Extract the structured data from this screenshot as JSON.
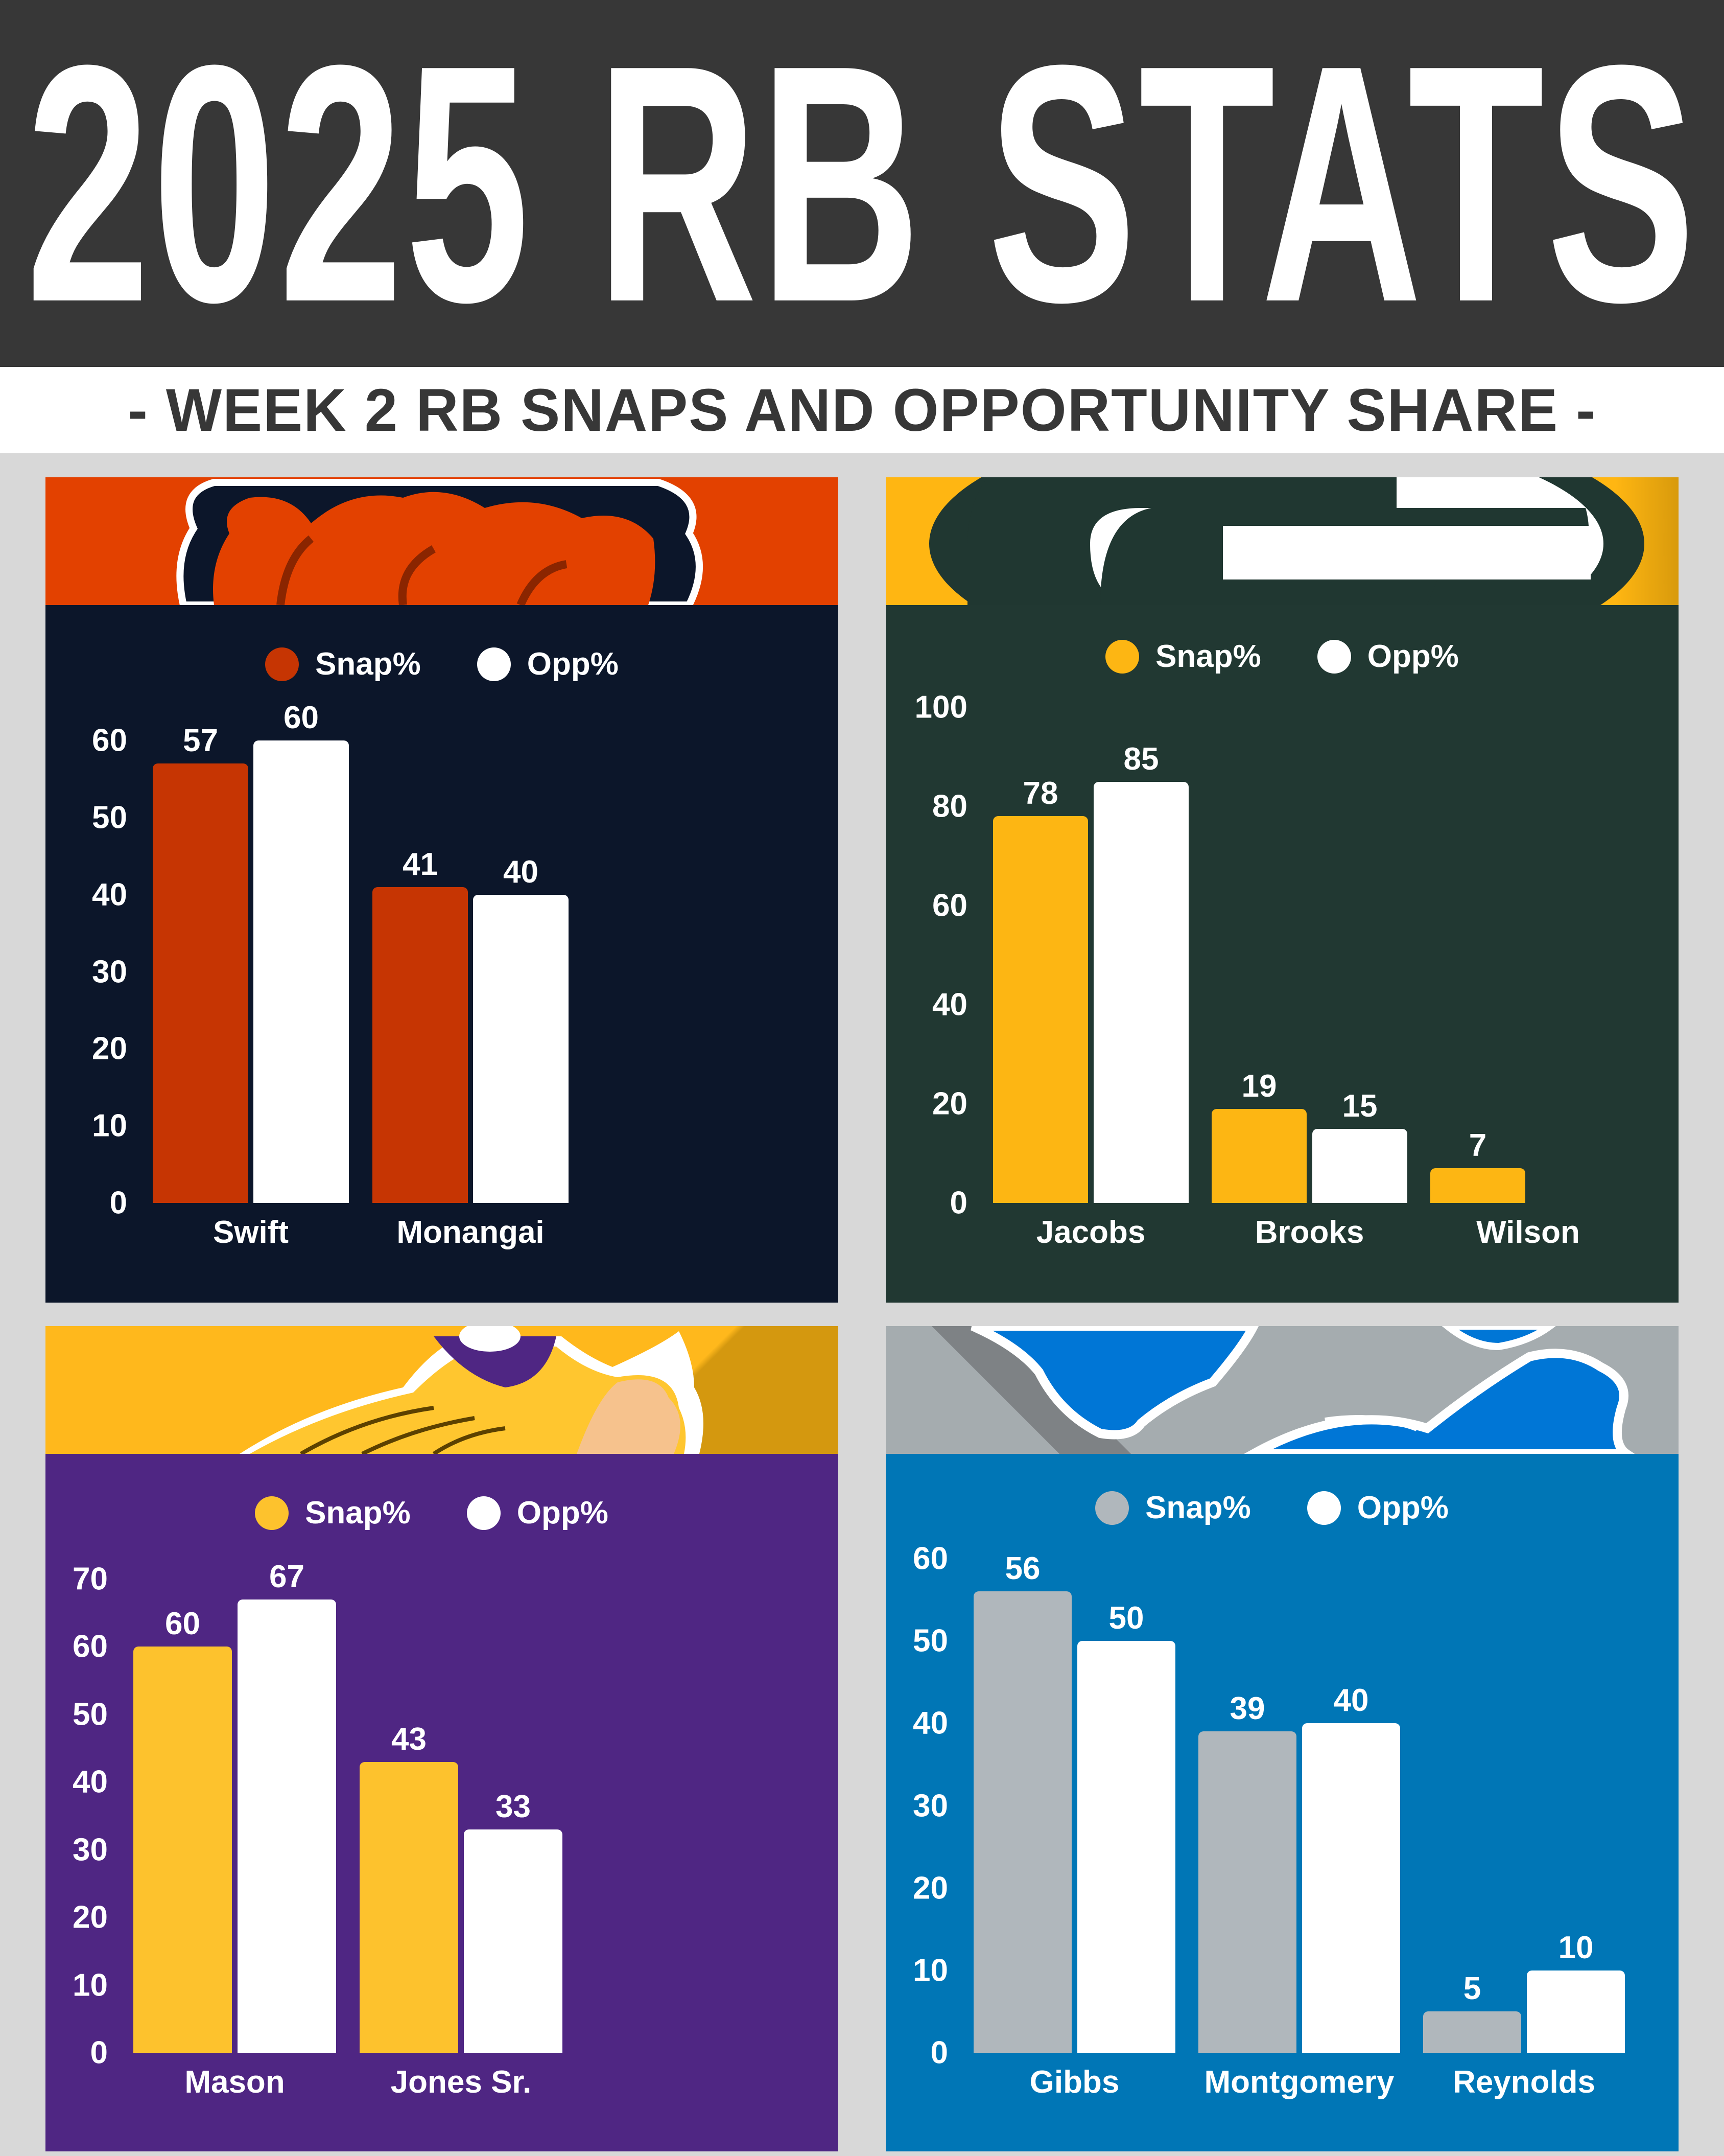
{
  "header": {
    "title": "2025 RB STATS",
    "subtitle": "- WEEK 2 RB SNAPS AND OPPORTUNITY SHARE -"
  },
  "legend": {
    "snap_label": "Snap%",
    "opp_label": "Opp%"
  },
  "colors": {
    "page_bg": "#d8d8d8",
    "title_bg": "#373737",
    "opp_bar": "#ffffff"
  },
  "chart_data": [
    {
      "type": "bar",
      "team": "Bears",
      "title": "",
      "legend": [
        "Snap%",
        "Opp%"
      ],
      "legend_position": "top",
      "categories": [
        "Swift",
        "Monangai"
      ],
      "series": [
        {
          "name": "Snap%",
          "values": [
            57,
            41
          ],
          "color": "#c63503"
        },
        {
          "name": "Opp%",
          "values": [
            60,
            40
          ],
          "color": "#ffffff"
        }
      ],
      "yticks": [
        0,
        10,
        20,
        30,
        40,
        50,
        60
      ],
      "ylim": [
        0,
        60
      ],
      "grid": false,
      "bg": "#0c162a",
      "header_bg": "#e34100",
      "xlabel": "",
      "ylabel": ""
    },
    {
      "type": "bar",
      "team": "Packers",
      "title": "",
      "legend": [
        "Snap%",
        "Opp%"
      ],
      "legend_position": "top",
      "categories": [
        "Jacobs",
        "Brooks",
        "Wilson"
      ],
      "series": [
        {
          "name": "Snap%",
          "values": [
            78,
            19,
            7
          ],
          "color": "#fdb613"
        },
        {
          "name": "Opp%",
          "values": [
            85,
            15,
            null
          ],
          "color": "#ffffff"
        }
      ],
      "yticks": [
        0,
        20,
        40,
        60,
        80,
        100
      ],
      "ylim": [
        0,
        100
      ],
      "grid": false,
      "bg": "#213832",
      "header_bg": "#ffb612",
      "xlabel": "",
      "ylabel": ""
    },
    {
      "type": "bar",
      "team": "Vikings",
      "title": "",
      "legend": [
        "Snap%",
        "Opp%"
      ],
      "legend_position": "top",
      "categories": [
        "Mason",
        "Jones Sr."
      ],
      "series": [
        {
          "name": "Snap%",
          "values": [
            60,
            43
          ],
          "color": "#fdc22d"
        },
        {
          "name": "Opp%",
          "values": [
            67,
            33
          ],
          "color": "#ffffff"
        }
      ],
      "yticks": [
        0,
        10,
        20,
        30,
        40,
        50,
        60,
        70
      ],
      "ylim": [
        0,
        70
      ],
      "grid": false,
      "bg": "#4f2683",
      "header_bg": "#ffb81c",
      "xlabel": "",
      "ylabel": ""
    },
    {
      "type": "bar",
      "team": "Lions",
      "title": "",
      "legend": [
        "Snap%",
        "Opp%"
      ],
      "legend_position": "top",
      "categories": [
        "Gibbs",
        "Montgomery",
        "Reynolds"
      ],
      "series": [
        {
          "name": "Snap%",
          "values": [
            56,
            39,
            5
          ],
          "color": "#b0b7bc"
        },
        {
          "name": "Opp%",
          "values": [
            50,
            40,
            10
          ],
          "color": "#ffffff"
        }
      ],
      "yticks": [
        0,
        10,
        20,
        30,
        40,
        50,
        60
      ],
      "ylim": [
        0,
        60
      ],
      "grid": false,
      "bg": "#0076b6",
      "header_bg": "#a5acaf",
      "xlabel": "",
      "ylabel": ""
    }
  ]
}
